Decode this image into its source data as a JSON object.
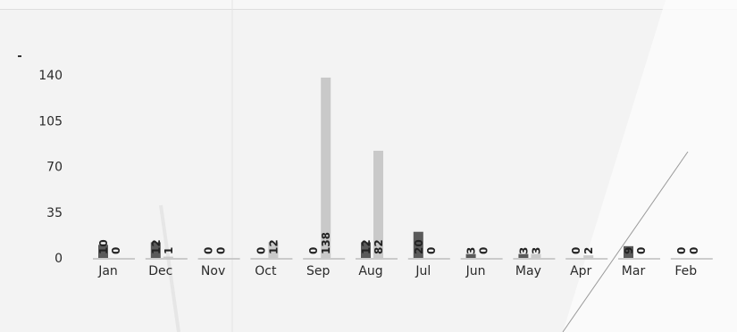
{
  "chart_data": {
    "type": "bar",
    "title": "",
    "xlabel": "",
    "ylabel": "",
    "ylim": [
      0,
      140
    ],
    "yticks": [
      0,
      35,
      70,
      105,
      140
    ],
    "grid": false,
    "legend": "none",
    "categories": [
      "Jan",
      "Dec",
      "Nov",
      "Oct",
      "Sep",
      "Aug",
      "Jul",
      "Jun",
      "May",
      "Apr",
      "Mar",
      "Feb"
    ],
    "series": [
      {
        "color": "#5a5a5a",
        "values": [
          10,
          12,
          0,
          0,
          0,
          12,
          20,
          3,
          3,
          0,
          9,
          0
        ]
      },
      {
        "color": "#c9c9c9",
        "values": [
          0,
          1,
          0,
          12,
          138,
          82,
          0,
          0,
          3,
          2,
          0,
          0
        ]
      }
    ]
  }
}
